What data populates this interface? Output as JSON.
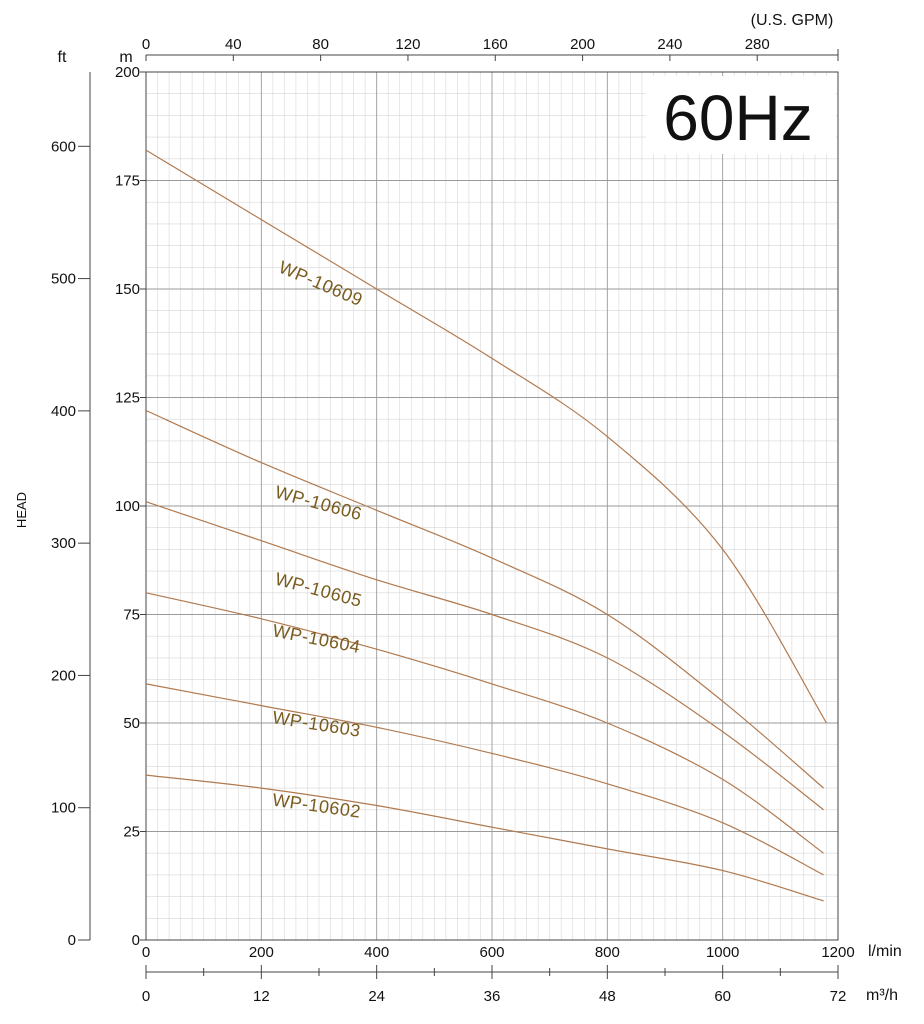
{
  "chart_data": {
    "type": "line",
    "annotation": "60Hz",
    "ylabel": "HEAD",
    "colors": {
      "curve": "#b07a50",
      "label": "#7a5c1e",
      "grid_major": "#9a9a9a",
      "grid_minor": "#d8d8d8"
    },
    "units": {
      "gpm": "(U.S. GPM)",
      "ft": "ft",
      "m": "m",
      "lmin": "l/min",
      "m3h": "m³/h"
    },
    "x_lmin": {
      "lim": [
        0,
        1200
      ],
      "ticks": [
        "0",
        "200",
        "400",
        "600",
        "800",
        "1000",
        "1200"
      ],
      "tick_values": [
        0,
        200,
        400,
        600,
        800,
        1000,
        1200
      ]
    },
    "x_m3h": {
      "lim": [
        0,
        72
      ],
      "ticks": [
        "0",
        "12",
        "24",
        "36",
        "48",
        "60",
        "72"
      ],
      "tick_values": [
        0,
        12,
        24,
        36,
        48,
        60,
        72
      ]
    },
    "x_gpm": {
      "ticks": [
        "0",
        "40",
        "80",
        "120",
        "160",
        "200",
        "240",
        "280"
      ],
      "tick_values": [
        0,
        40,
        80,
        120,
        160,
        200,
        240,
        280
      ]
    },
    "y_m": {
      "lim": [
        0,
        200
      ],
      "ticks": [
        "0",
        "25",
        "50",
        "75",
        "100",
        "125",
        "150",
        "175",
        "200"
      ],
      "tick_values": [
        0,
        25,
        50,
        75,
        100,
        125,
        150,
        175,
        200
      ]
    },
    "y_ft": {
      "ticks": [
        "0",
        "100",
        "200",
        "300",
        "400",
        "500",
        "600"
      ],
      "tick_values": [
        0,
        100,
        200,
        300,
        400,
        500,
        600
      ]
    },
    "series": [
      {
        "name": "WP-10609",
        "label_at": [
          228,
          154
        ],
        "label_angle": 23,
        "x": [
          0,
          200,
          400,
          600,
          800,
          1000,
          1180
        ],
        "y": [
          182,
          166,
          150,
          134,
          116,
          90,
          50
        ]
      },
      {
        "name": "WP-10606",
        "label_at": [
          222,
          102
        ],
        "label_angle": 15,
        "x": [
          0,
          200,
          400,
          600,
          800,
          1000,
          1175
        ],
        "y": [
          122,
          110,
          99,
          88,
          75,
          55,
          35
        ]
      },
      {
        "name": "WP-10605",
        "label_at": [
          222,
          82
        ],
        "label_angle": 15,
        "x": [
          0,
          200,
          400,
          600,
          800,
          1000,
          1175
        ],
        "y": [
          101,
          92,
          83,
          75,
          65,
          48,
          30
        ]
      },
      {
        "name": "WP-10604",
        "label_at": [
          218,
          70
        ],
        "label_angle": 11,
        "x": [
          0,
          200,
          400,
          600,
          800,
          1000,
          1175
        ],
        "y": [
          80,
          74,
          67,
          59,
          50,
          37,
          20
        ]
      },
      {
        "name": "WP-10603",
        "label_at": [
          218,
          50
        ],
        "label_angle": 9,
        "x": [
          0,
          200,
          400,
          600,
          800,
          1000,
          1175
        ],
        "y": [
          59,
          54,
          49,
          43,
          36,
          27,
          15
        ]
      },
      {
        "name": "WP-10602",
        "label_at": [
          218,
          31
        ],
        "label_angle": 8,
        "x": [
          0,
          200,
          400,
          600,
          800,
          1000,
          1175
        ],
        "y": [
          38,
          35,
          31,
          26,
          21,
          16,
          9
        ]
      }
    ]
  }
}
